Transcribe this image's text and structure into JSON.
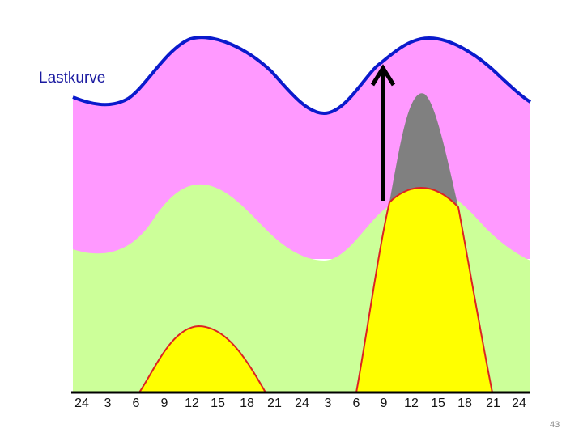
{
  "load_curve_label": "Lastkurve",
  "time_axis_ticks": [
    "24",
    "3",
    "6",
    "9",
    "12",
    "15",
    "18",
    "21",
    "24",
    "3",
    "6",
    "9",
    "12",
    "15",
    "18",
    "21",
    "24"
  ],
  "page_number": "43",
  "colors": {
    "base_band": "#ccff99",
    "upper_band": "#ff99ff",
    "load_curve_line": "#0a1acc",
    "yellow_areas": "#ffff00",
    "yellow_outline": "#dd2222",
    "peak_area": "#808080",
    "arrow": "#000000",
    "axis_line": "#000000"
  }
}
